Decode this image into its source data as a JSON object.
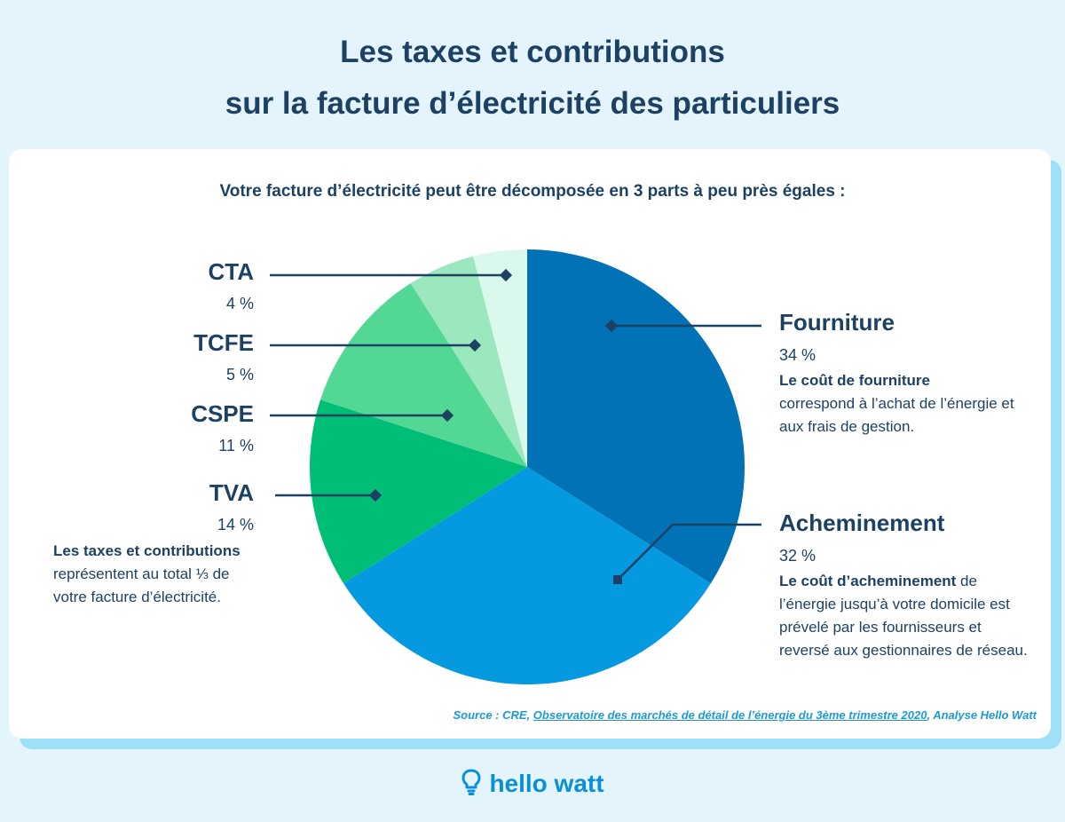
{
  "title": {
    "line1": "Les taxes et contributions",
    "line2": "sur la facture d’électricité des particuliers"
  },
  "subtitle": "Votre facture d’électricité peut être décomposée en 3 parts à peu près égales :",
  "chart_data": {
    "type": "pie",
    "start": "top, clockwise",
    "slices": [
      {
        "label": "Fourniture",
        "value": 34,
        "display": "34 %",
        "color": "#0072b5"
      },
      {
        "label": "Acheminement",
        "value": 32,
        "display": "32 %",
        "color": "#0599e0"
      },
      {
        "label": "TVA",
        "value": 14,
        "display": "14 %",
        "color": "#00be75"
      },
      {
        "label": "CSPE",
        "value": 11,
        "display": "11 %",
        "color": "#52d795"
      },
      {
        "label": "TCFE",
        "value": 5,
        "display": "5 %",
        "color": "#9be7be"
      },
      {
        "label": "CTA",
        "value": 4,
        "display": "4 %",
        "color": "#dbf8ec"
      }
    ]
  },
  "descriptions": {
    "fourniture": {
      "bold": "Le coût de fourniture",
      "rest": "correspond à l’achat de l’énergie et aux frais de gestion."
    },
    "acheminement": {
      "bold": "Le coût d’acheminement",
      "rest": " de l’énergie jusqu’à votre domicile est prévelé par les fournisseurs et reversé aux gestionnaires de réseau."
    },
    "taxes": {
      "bold": "Les taxes et contributions",
      "rest": "représentent au total ⅓ de votre facture d’électricité."
    }
  },
  "source": {
    "prefix": "Source : CRE, ",
    "link": "Observatoire des marchés de détail de l’énergie du 3ème trimestre 2020",
    "suffix": ", Analyse Hello Watt"
  },
  "brand": {
    "name": "hello watt",
    "icon": "lightbulb-icon"
  },
  "colors": {
    "accent": "#0a8fd8",
    "title": "#1d4163",
    "background": "#e3f4fd"
  }
}
